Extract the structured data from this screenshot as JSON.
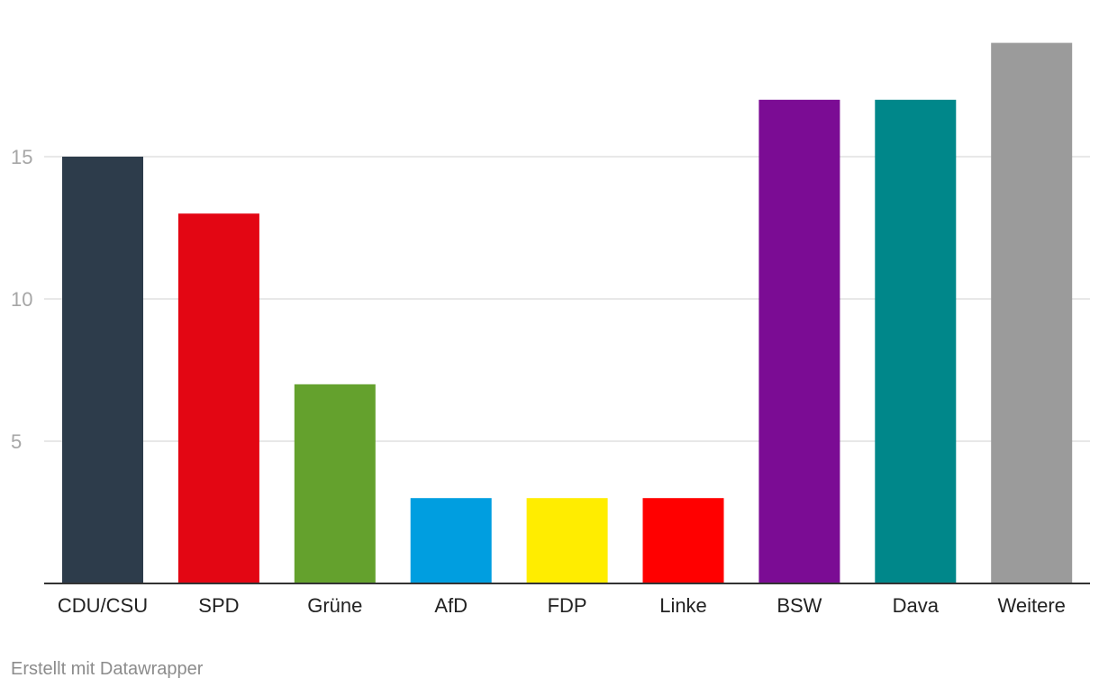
{
  "chart_data": {
    "type": "bar",
    "categories": [
      "CDU/CSU",
      "SPD",
      "Grüne",
      "AfD",
      "FDP",
      "Linke",
      "BSW",
      "Dava",
      "Weitere"
    ],
    "values": [
      15,
      13,
      7,
      3,
      3,
      3,
      17,
      17,
      19
    ],
    "colors": [
      "#2d3c4b",
      "#e30613",
      "#64a12d",
      "#009ee0",
      "#ffed00",
      "#ff0000",
      "#7b0c94",
      "#00878a",
      "#9b9b9b"
    ],
    "yticks": [
      5,
      10,
      15
    ],
    "ylim": [
      0,
      19
    ],
    "grid": true,
    "xlabel": "",
    "ylabel": "",
    "colors_ui": {
      "grid": "#e0e0e0",
      "axis": "#333333",
      "tick_text": "#a6a6a6",
      "category_text": "#222222"
    }
  },
  "footer": {
    "credit": "Erstellt mit Datawrapper"
  }
}
